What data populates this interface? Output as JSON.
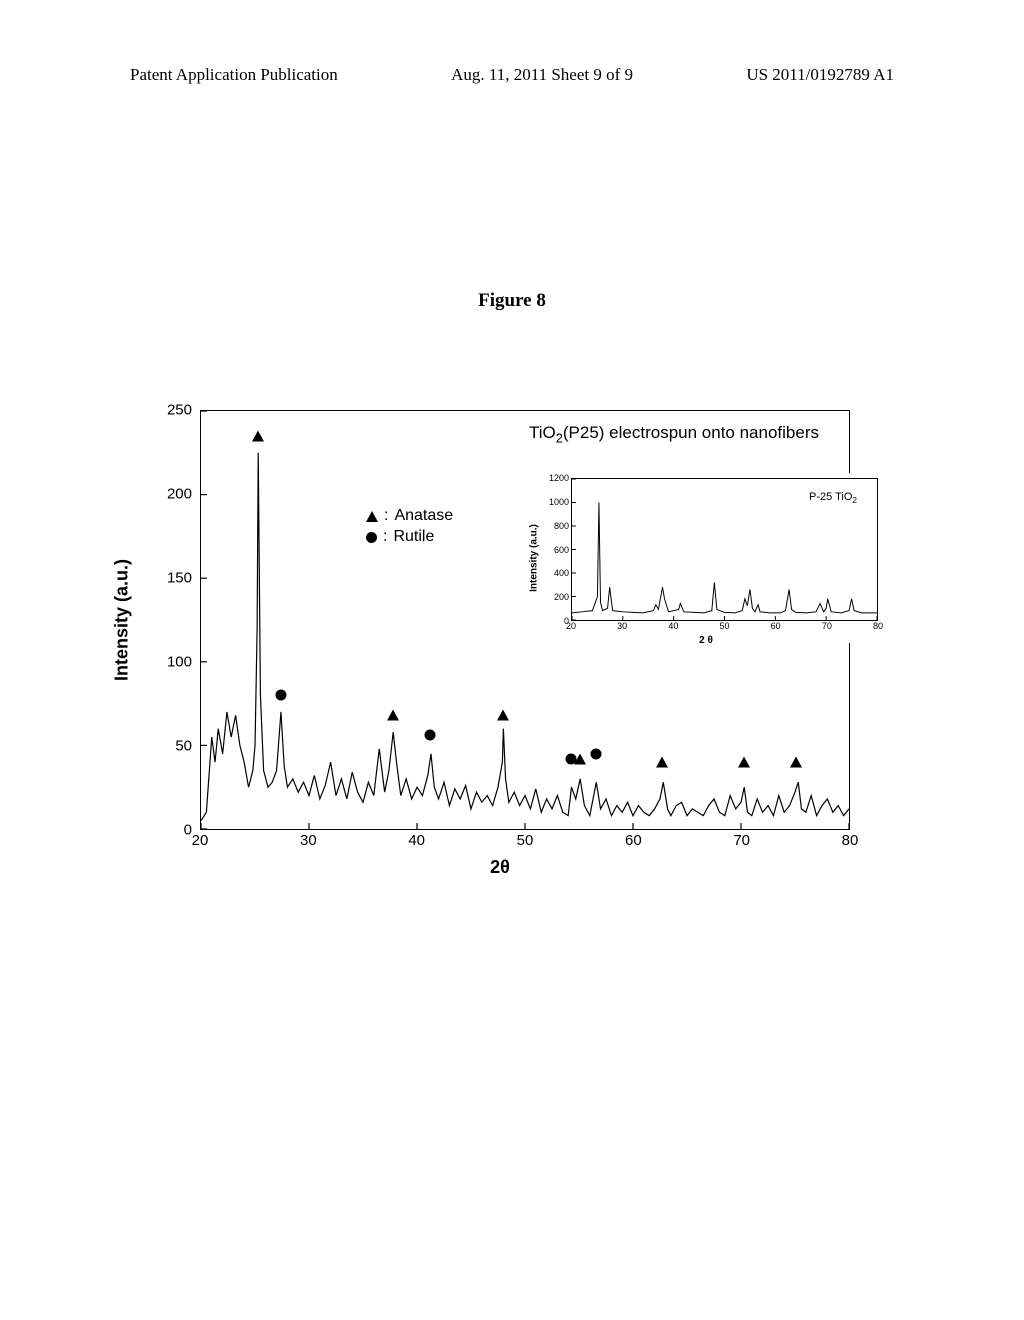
{
  "header": {
    "left": "Patent Application Publication",
    "center": "Aug. 11, 2011  Sheet 9 of 9",
    "right": "US 2011/0192789 A1"
  },
  "figure_caption": "Figure 8",
  "main_chart": {
    "type": "line",
    "title_prefix": "TiO",
    "title_sub": "2",
    "title_suffix": "(P25) electrospun onto nanofibers",
    "y_label": "Intensity (a.u.)",
    "x_label": "2θ",
    "xlim": [
      20,
      80
    ],
    "ylim": [
      0,
      250
    ],
    "x_ticks": [
      20,
      30,
      40,
      50,
      60,
      70,
      80
    ],
    "y_ticks": [
      0,
      50,
      100,
      150,
      200,
      250
    ],
    "legend": {
      "anatase": "Anatase",
      "rutile": "Rutile"
    },
    "markers": [
      {
        "shape": "triangle",
        "x": 25.3,
        "y": 235
      },
      {
        "shape": "circle",
        "x": 27.4,
        "y": 80
      },
      {
        "shape": "triangle",
        "x": 37.8,
        "y": 68
      },
      {
        "shape": "circle",
        "x": 41.2,
        "y": 56
      },
      {
        "shape": "triangle",
        "x": 48.0,
        "y": 68
      },
      {
        "shape": "circle",
        "x": 54.3,
        "y": 42
      },
      {
        "shape": "triangle",
        "x": 55.1,
        "y": 42
      },
      {
        "shape": "circle",
        "x": 56.6,
        "y": 45
      },
      {
        "shape": "triangle",
        "x": 62.7,
        "y": 40
      },
      {
        "shape": "triangle",
        "x": 70.3,
        "y": 40
      },
      {
        "shape": "triangle",
        "x": 75.1,
        "y": 40
      }
    ],
    "data_points": [
      [
        20,
        5
      ],
      [
        20.5,
        10
      ],
      [
        21,
        55
      ],
      [
        21.3,
        40
      ],
      [
        21.6,
        60
      ],
      [
        22,
        45
      ],
      [
        22.4,
        70
      ],
      [
        22.8,
        55
      ],
      [
        23.2,
        68
      ],
      [
        23.6,
        50
      ],
      [
        24,
        40
      ],
      [
        24.4,
        25
      ],
      [
        24.8,
        35
      ],
      [
        25.0,
        50
      ],
      [
        25.2,
        120
      ],
      [
        25.3,
        225
      ],
      [
        25.5,
        80
      ],
      [
        25.8,
        35
      ],
      [
        26.2,
        25
      ],
      [
        26.6,
        28
      ],
      [
        27.0,
        35
      ],
      [
        27.4,
        70
      ],
      [
        27.7,
        38
      ],
      [
        28.0,
        25
      ],
      [
        28.5,
        30
      ],
      [
        29,
        22
      ],
      [
        29.5,
        28
      ],
      [
        30,
        20
      ],
      [
        30.5,
        32
      ],
      [
        31,
        18
      ],
      [
        31.5,
        26
      ],
      [
        32,
        40
      ],
      [
        32.5,
        20
      ],
      [
        33,
        30
      ],
      [
        33.5,
        18
      ],
      [
        34,
        34
      ],
      [
        34.5,
        22
      ],
      [
        35,
        16
      ],
      [
        35.5,
        28
      ],
      [
        36,
        20
      ],
      [
        36.5,
        48
      ],
      [
        37,
        22
      ],
      [
        37.4,
        35
      ],
      [
        37.8,
        58
      ],
      [
        38.1,
        40
      ],
      [
        38.5,
        20
      ],
      [
        39,
        30
      ],
      [
        39.5,
        18
      ],
      [
        40,
        25
      ],
      [
        40.5,
        20
      ],
      [
        41,
        32
      ],
      [
        41.3,
        45
      ],
      [
        41.6,
        25
      ],
      [
        42,
        18
      ],
      [
        42.5,
        28
      ],
      [
        43,
        14
      ],
      [
        43.5,
        24
      ],
      [
        44,
        18
      ],
      [
        44.5,
        26
      ],
      [
        45,
        12
      ],
      [
        45.5,
        22
      ],
      [
        46,
        16
      ],
      [
        46.5,
        20
      ],
      [
        47,
        14
      ],
      [
        47.5,
        25
      ],
      [
        47.9,
        40
      ],
      [
        48.0,
        60
      ],
      [
        48.2,
        30
      ],
      [
        48.5,
        16
      ],
      [
        49,
        22
      ],
      [
        49.5,
        14
      ],
      [
        50,
        20
      ],
      [
        50.5,
        12
      ],
      [
        51,
        24
      ],
      [
        51.5,
        10
      ],
      [
        52,
        18
      ],
      [
        52.5,
        12
      ],
      [
        53,
        20
      ],
      [
        53.5,
        10
      ],
      [
        54,
        8
      ],
      [
        54.3,
        25
      ],
      [
        54.7,
        18
      ],
      [
        55.1,
        30
      ],
      [
        55.5,
        14
      ],
      [
        56,
        8
      ],
      [
        56.6,
        28
      ],
      [
        57,
        12
      ],
      [
        57.5,
        18
      ],
      [
        58,
        8
      ],
      [
        58.5,
        14
      ],
      [
        59,
        10
      ],
      [
        59.5,
        16
      ],
      [
        60,
        8
      ],
      [
        60.5,
        14
      ],
      [
        61,
        10
      ],
      [
        61.5,
        8
      ],
      [
        62,
        12
      ],
      [
        62.5,
        18
      ],
      [
        62.8,
        28
      ],
      [
        63.2,
        12
      ],
      [
        63.5,
        8
      ],
      [
        64,
        14
      ],
      [
        64.5,
        16
      ],
      [
        65,
        8
      ],
      [
        65.5,
        12
      ],
      [
        66,
        10
      ],
      [
        66.5,
        8
      ],
      [
        67,
        14
      ],
      [
        67.5,
        18
      ],
      [
        68,
        10
      ],
      [
        68.5,
        8
      ],
      [
        69,
        20
      ],
      [
        69.5,
        12
      ],
      [
        70,
        16
      ],
      [
        70.3,
        25
      ],
      [
        70.6,
        10
      ],
      [
        71,
        8
      ],
      [
        71.5,
        18
      ],
      [
        72,
        10
      ],
      [
        72.5,
        14
      ],
      [
        73,
        8
      ],
      [
        73.5,
        20
      ],
      [
        74,
        10
      ],
      [
        74.5,
        14
      ],
      [
        75,
        22
      ],
      [
        75.3,
        28
      ],
      [
        75.6,
        12
      ],
      [
        76,
        10
      ],
      [
        76.5,
        20
      ],
      [
        77,
        8
      ],
      [
        77.5,
        14
      ],
      [
        78,
        18
      ],
      [
        78.5,
        10
      ],
      [
        79,
        14
      ],
      [
        79.5,
        8
      ],
      [
        80,
        12
      ]
    ],
    "line_color": "#000000",
    "line_width": 1.2,
    "background_color": "#ffffff"
  },
  "inset_chart": {
    "type": "line",
    "title_prefix": "P-25 TiO",
    "title_sub": "2",
    "y_label": "Intensity (a.u.)",
    "x_label": "2 θ",
    "xlim": [
      20,
      80
    ],
    "ylim": [
      0,
      1200
    ],
    "x_ticks": [
      20,
      30,
      40,
      50,
      60,
      70,
      80
    ],
    "y_ticks": [
      0,
      200,
      400,
      600,
      800,
      1000,
      1200
    ],
    "data_points": [
      [
        20,
        60
      ],
      [
        22,
        70
      ],
      [
        24,
        80
      ],
      [
        25,
        200
      ],
      [
        25.3,
        1000
      ],
      [
        25.6,
        150
      ],
      [
        26,
        80
      ],
      [
        27,
        100
      ],
      [
        27.4,
        280
      ],
      [
        28,
        80
      ],
      [
        30,
        70
      ],
      [
        32,
        65
      ],
      [
        34,
        60
      ],
      [
        36,
        80
      ],
      [
        36.5,
        130
      ],
      [
        37,
        90
      ],
      [
        37.8,
        280
      ],
      [
        38.2,
        180
      ],
      [
        39,
        70
      ],
      [
        41,
        90
      ],
      [
        41.3,
        140
      ],
      [
        42,
        70
      ],
      [
        44,
        65
      ],
      [
        46,
        60
      ],
      [
        47.5,
        80
      ],
      [
        48,
        320
      ],
      [
        48.5,
        90
      ],
      [
        50,
        65
      ],
      [
        52,
        60
      ],
      [
        53.5,
        80
      ],
      [
        54,
        180
      ],
      [
        54.5,
        120
      ],
      [
        55,
        260
      ],
      [
        55.5,
        100
      ],
      [
        56,
        70
      ],
      [
        56.6,
        130
      ],
      [
        57,
        70
      ],
      [
        59,
        60
      ],
      [
        61,
        60
      ],
      [
        62,
        80
      ],
      [
        62.7,
        260
      ],
      [
        63.2,
        90
      ],
      [
        64,
        65
      ],
      [
        66,
        60
      ],
      [
        68,
        70
      ],
      [
        68.8,
        140
      ],
      [
        69.5,
        70
      ],
      [
        70,
        100
      ],
      [
        70.3,
        180
      ],
      [
        71,
        70
      ],
      [
        73,
        60
      ],
      [
        74.5,
        80
      ],
      [
        75,
        180
      ],
      [
        75.5,
        80
      ],
      [
        77,
        60
      ],
      [
        79,
        60
      ],
      [
        80,
        60
      ]
    ],
    "line_color": "#000000",
    "line_width": 1,
    "background_color": "#ffffff"
  }
}
